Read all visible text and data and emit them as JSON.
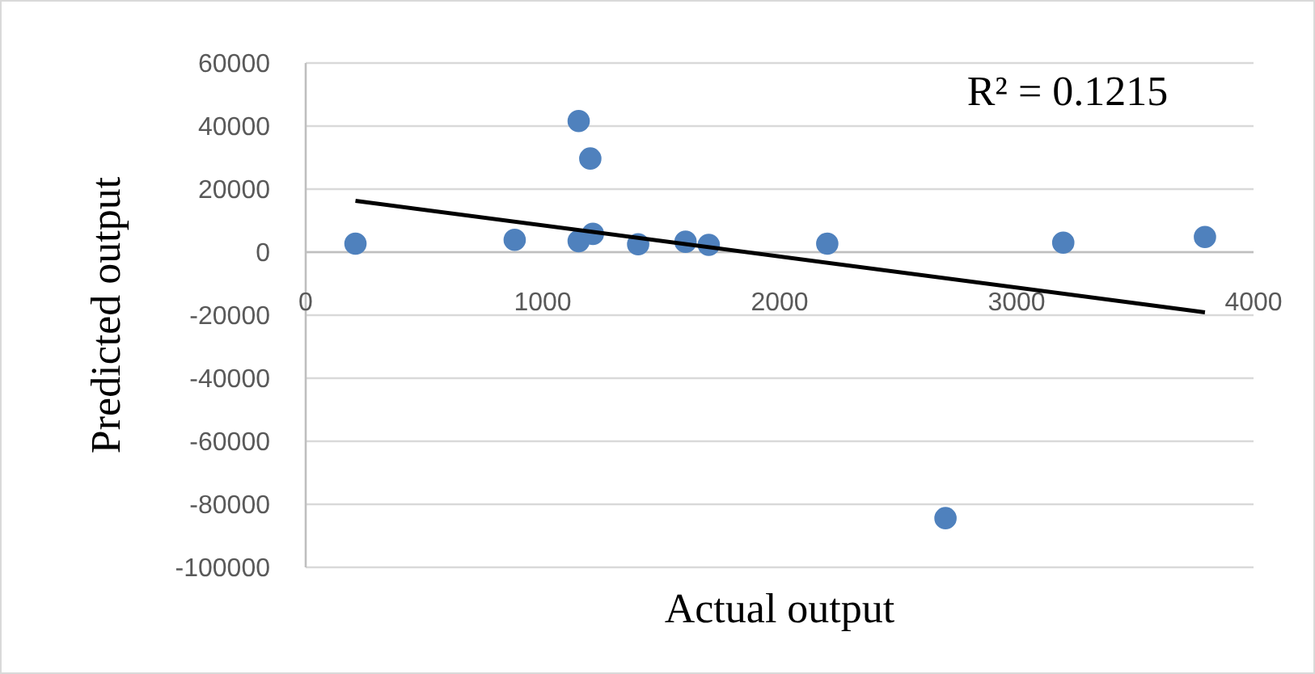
{
  "chart_data": {
    "type": "scatter",
    "xlabel": "Actual output",
    "ylabel": "Predicted output",
    "xlim": [
      0,
      4000
    ],
    "xticks": [
      0,
      1000,
      2000,
      3000,
      4000
    ],
    "ylim": [
      -100000,
      60000
    ],
    "yticks": [
      -100000,
      -80000,
      -60000,
      -40000,
      -20000,
      0,
      20000,
      40000,
      60000
    ],
    "grid": "y",
    "marker": "circle",
    "annotations": [
      "R² = 0.1215"
    ],
    "series": [
      {
        "color": "#4f81bd",
        "x": [
          210,
          882,
          1152,
          1201,
          1152,
          1212,
          1403,
          1603,
          1701,
          2201,
          2700,
          3197,
          3795
        ],
        "values": [
          2700,
          3900,
          41600,
          29700,
          3500,
          5800,
          2500,
          3300,
          2300,
          2700,
          -84400,
          3000,
          4800
        ]
      },
      {
        "type": "line",
        "color": "#000000",
        "line_style": "solid",
        "marker": "none",
        "x": [
          210,
          3795
        ],
        "values": [
          16300,
          -19100
        ]
      }
    ]
  }
}
